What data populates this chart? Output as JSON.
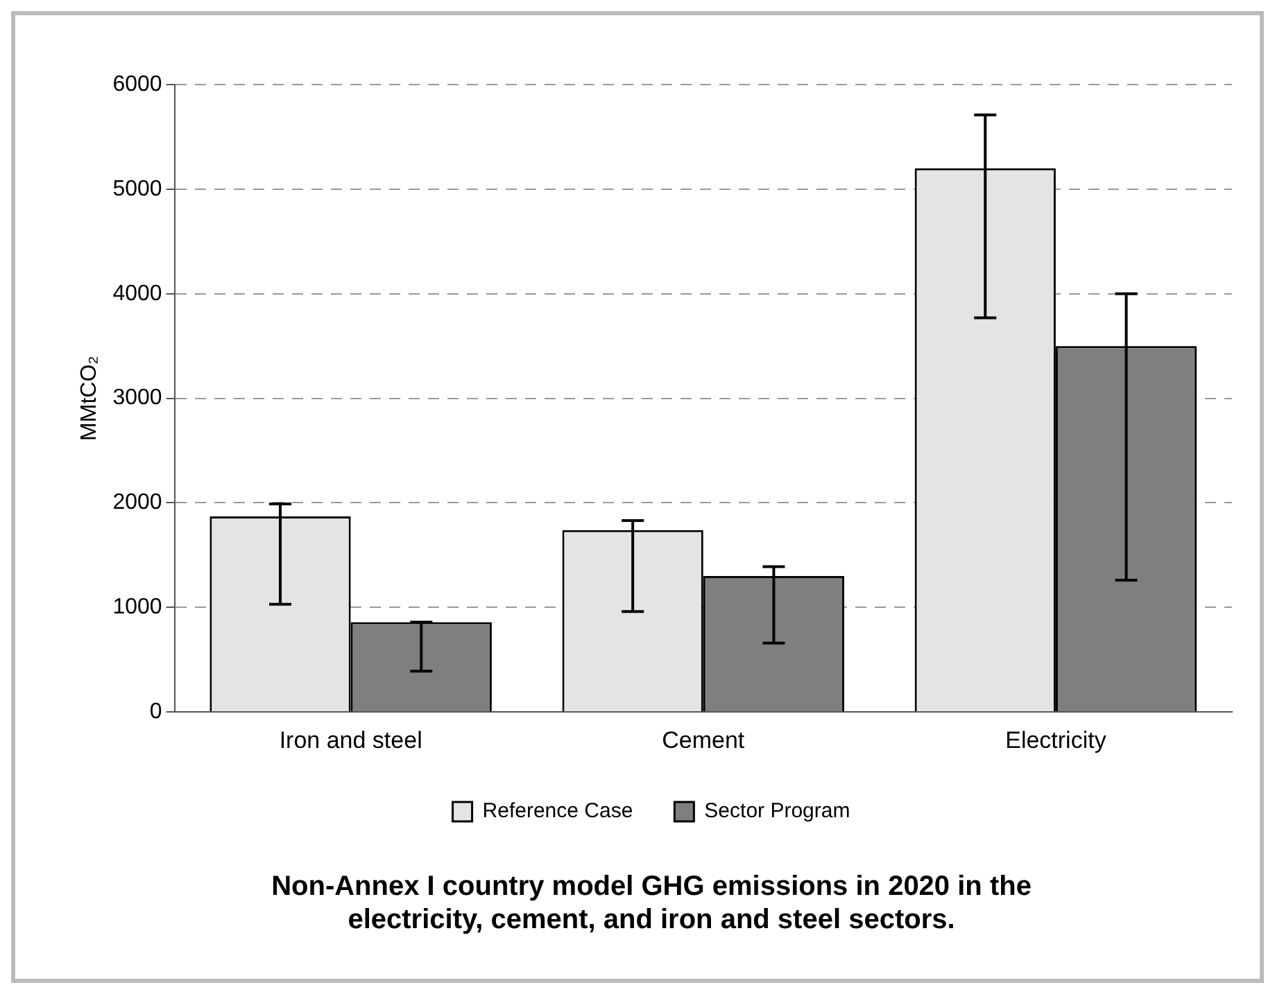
{
  "chart_data": {
    "type": "bar",
    "title": "Non-Annex I country model GHG emissions in 2020 in the electricity, cement, and iron and steel sectors.",
    "ylabel": "MMtCO₂",
    "categories": [
      "Iron and steel",
      "Cement",
      "Electricity"
    ],
    "series": [
      {
        "name": "Reference Case",
        "color": "#e4e4e4",
        "values": [
          1870,
          1740,
          5200
        ],
        "errors": [
          [
            1030,
            1990
          ],
          [
            960,
            1830
          ],
          [
            3770,
            5710
          ]
        ]
      },
      {
        "name": "Sector Program",
        "color": "#7f7f7f",
        "values": [
          860,
          1300,
          3500
        ],
        "errors": [
          [
            390,
            860
          ],
          [
            660,
            1390
          ],
          [
            1260,
            4000
          ]
        ]
      }
    ],
    "ylim": [
      0,
      6000
    ],
    "yticks": [
      0,
      1000,
      2000,
      3000,
      4000,
      5000,
      6000
    ],
    "grid": "y",
    "legend": "bottom"
  }
}
